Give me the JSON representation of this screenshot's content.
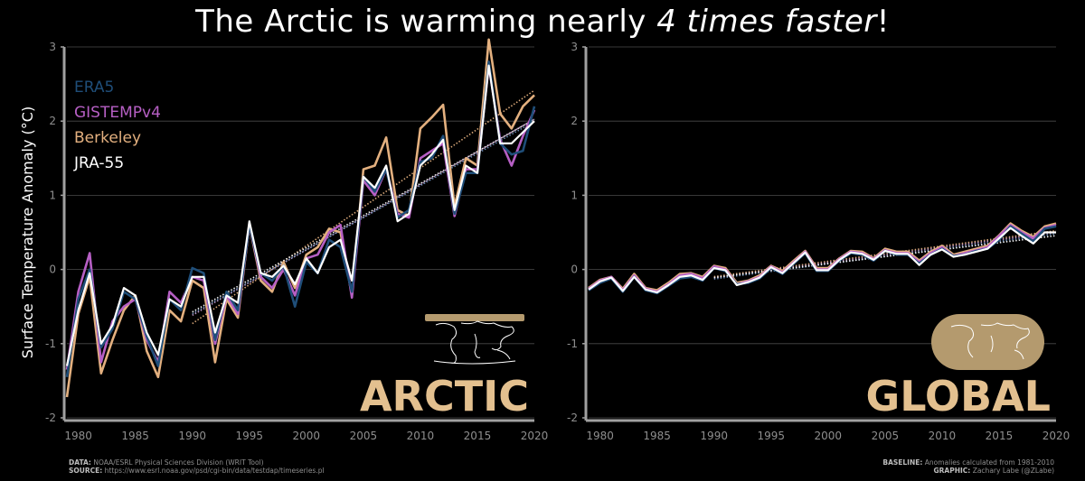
{
  "title": {
    "prefix": "The Arctic is warming nearly ",
    "emphasis": "4 times faster",
    "suffix": "!"
  },
  "colors": {
    "ERA5": "#1f4e79",
    "GISTEMPv4": "#b65fc4",
    "Berkeley": "#e3b07f",
    "JRA-55": "#ffffff",
    "panel_label": "#e3c08f",
    "map": "#b49a6e"
  },
  "chart_data": [
    {
      "type": "line",
      "title": "",
      "panel_label": "ARCTIC",
      "ylabel": "Surface Temperature Anomaly (°C)",
      "xlabel": "",
      "xlim": [
        1979,
        2020
      ],
      "ylim": [
        -2,
        3
      ],
      "xticks": [
        1980,
        1985,
        1990,
        1995,
        2000,
        2005,
        2010,
        2015,
        2020
      ],
      "yticks": [
        -2,
        -1,
        0,
        1,
        2,
        3
      ],
      "grid": true,
      "legend": "top-left",
      "x": [
        1979,
        1980,
        1981,
        1982,
        1983,
        1984,
        1985,
        1986,
        1987,
        1988,
        1989,
        1990,
        1991,
        1992,
        1993,
        1994,
        1995,
        1996,
        1997,
        1998,
        1999,
        2000,
        2001,
        2002,
        2003,
        2004,
        2005,
        2006,
        2007,
        2008,
        2009,
        2010,
        2011,
        2012,
        2013,
        2014,
        2015,
        2016,
        2017,
        2018,
        2019,
        2020
      ],
      "series": [
        {
          "name": "ERA5",
          "values": [
            -1.45,
            -0.4,
            0.0,
            -1.05,
            -0.8,
            -0.3,
            -0.4,
            -0.9,
            -1.3,
            -0.4,
            -0.55,
            0.02,
            -0.05,
            -0.95,
            -0.3,
            -0.55,
            0.6,
            -0.05,
            -0.15,
            0.05,
            -0.5,
            0.1,
            -0.05,
            0.4,
            0.3,
            -0.3,
            1.25,
            1.05,
            1.35,
            0.7,
            0.8,
            1.45,
            1.5,
            1.8,
            0.75,
            1.3,
            1.3,
            2.8,
            1.7,
            1.55,
            1.6,
            2.2
          ]
        },
        {
          "name": "GISTEMPv4",
          "values": [
            -1.35,
            -0.3,
            0.22,
            -1.25,
            -0.7,
            -0.5,
            -0.4,
            -0.95,
            -1.25,
            -0.3,
            -0.45,
            -0.1,
            -0.15,
            -1.0,
            -0.35,
            -0.6,
            0.6,
            -0.1,
            -0.25,
            0.0,
            -0.35,
            0.15,
            0.2,
            0.5,
            0.6,
            -0.38,
            1.2,
            1.0,
            1.35,
            0.75,
            0.7,
            1.5,
            1.6,
            1.7,
            0.72,
            1.35,
            1.35,
            2.75,
            1.75,
            1.4,
            1.8,
            2.15
          ]
        },
        {
          "name": "Berkeley",
          "values": [
            -1.72,
            -0.6,
            -0.1,
            -1.4,
            -0.95,
            -0.55,
            -0.35,
            -1.1,
            -1.45,
            -0.55,
            -0.7,
            -0.15,
            -0.25,
            -1.25,
            -0.4,
            -0.65,
            0.6,
            -0.15,
            -0.3,
            0.1,
            -0.25,
            0.2,
            0.3,
            0.55,
            0.5,
            -0.35,
            1.35,
            1.4,
            1.78,
            0.8,
            0.72,
            1.9,
            2.05,
            2.22,
            0.85,
            1.5,
            1.4,
            3.1,
            2.1,
            1.9,
            2.2,
            2.35
          ]
        },
        {
          "name": "JRA-55",
          "values": [
            -1.3,
            -0.55,
            -0.05,
            -1.0,
            -0.75,
            -0.25,
            -0.35,
            -0.85,
            -1.15,
            -0.4,
            -0.5,
            -0.1,
            -0.1,
            -0.85,
            -0.35,
            -0.45,
            0.65,
            -0.05,
            -0.1,
            0.05,
            -0.2,
            0.15,
            -0.05,
            0.3,
            0.4,
            -0.15,
            1.25,
            1.1,
            1.4,
            0.65,
            0.75,
            1.4,
            1.55,
            1.75,
            0.8,
            1.4,
            1.3,
            2.75,
            1.7,
            1.7,
            1.85,
            2.0
          ]
        }
      ]
    },
    {
      "type": "line",
      "title": "",
      "panel_label": "GLOBAL",
      "ylabel": "",
      "xlabel": "",
      "xlim": [
        1979,
        2020
      ],
      "ylim": [
        -2,
        3
      ],
      "xticks": [
        1980,
        1985,
        1990,
        1995,
        2000,
        2005,
        2010,
        2015,
        2020
      ],
      "yticks": [
        -2,
        -1,
        0,
        1,
        2,
        3
      ],
      "grid": true,
      "legend": "none",
      "x": [
        1979,
        1980,
        1981,
        1982,
        1983,
        1984,
        1985,
        1986,
        1987,
        1988,
        1989,
        1990,
        1991,
        1992,
        1993,
        1994,
        1995,
        1996,
        1997,
        1998,
        1999,
        2000,
        2001,
        2002,
        2003,
        2004,
        2005,
        2006,
        2007,
        2008,
        2009,
        2010,
        2011,
        2012,
        2013,
        2014,
        2015,
        2016,
        2017,
        2018,
        2019,
        2020
      ],
      "series": [
        {
          "name": "ERA5",
          "values": [
            -0.28,
            -0.18,
            -0.12,
            -0.3,
            -0.1,
            -0.28,
            -0.32,
            -0.22,
            -0.12,
            -0.1,
            -0.15,
            0.02,
            -0.02,
            -0.2,
            -0.18,
            -0.12,
            0.02,
            -0.06,
            0.08,
            0.22,
            -0.02,
            -0.02,
            0.12,
            0.22,
            0.2,
            0.12,
            0.25,
            0.2,
            0.2,
            0.08,
            0.2,
            0.28,
            0.18,
            0.2,
            0.25,
            0.28,
            0.4,
            0.58,
            0.48,
            0.38,
            0.55,
            0.58
          ]
        },
        {
          "name": "GISTEMPv4",
          "values": [
            -0.26,
            -0.15,
            -0.1,
            -0.28,
            -0.08,
            -0.26,
            -0.3,
            -0.2,
            -0.08,
            -0.06,
            -0.12,
            0.04,
            0.0,
            -0.2,
            -0.16,
            -0.1,
            0.04,
            -0.04,
            0.1,
            0.24,
            0.0,
            0.0,
            0.14,
            0.24,
            0.22,
            0.14,
            0.26,
            0.22,
            0.22,
            0.1,
            0.22,
            0.3,
            0.18,
            0.22,
            0.26,
            0.3,
            0.45,
            0.6,
            0.5,
            0.42,
            0.56,
            0.6
          ]
        },
        {
          "name": "Berkeley",
          "values": [
            -0.25,
            -0.14,
            -0.1,
            -0.26,
            -0.06,
            -0.25,
            -0.28,
            -0.18,
            -0.06,
            -0.05,
            -0.1,
            0.05,
            0.02,
            -0.18,
            -0.15,
            -0.08,
            0.05,
            -0.02,
            0.12,
            0.25,
            0.02,
            0.02,
            0.15,
            0.25,
            0.24,
            0.15,
            0.28,
            0.24,
            0.24,
            0.12,
            0.24,
            0.32,
            0.2,
            0.24,
            0.28,
            0.32,
            0.46,
            0.62,
            0.52,
            0.44,
            0.58,
            0.62
          ]
        },
        {
          "name": "JRA-55",
          "values": [
            -0.27,
            -0.16,
            -0.11,
            -0.29,
            -0.1,
            -0.27,
            -0.31,
            -0.21,
            -0.1,
            -0.08,
            -0.14,
            0.02,
            -0.01,
            -0.21,
            -0.17,
            -0.11,
            0.03,
            -0.05,
            0.09,
            0.23,
            -0.01,
            -0.01,
            0.13,
            0.23,
            0.21,
            0.13,
            0.25,
            0.21,
            0.21,
            0.06,
            0.2,
            0.27,
            0.17,
            0.2,
            0.24,
            0.28,
            0.42,
            0.56,
            0.45,
            0.35,
            0.5,
            0.5
          ]
        }
      ]
    }
  ],
  "footer": {
    "data_label": "DATA:",
    "data_text": "NOAA/ESRL Physical Sciences Division (WRIT Tool)",
    "source_label": "SOURCE:",
    "source_text": "https://www.esrl.noaa.gov/psd/cgi-bin/data/testdap/timeseries.pl",
    "baseline_label": "BASELINE:",
    "baseline_text": "Anomalies calculated from 1981-2010",
    "graphic_label": "GRAPHIC:",
    "graphic_text": "Zachary Labe (@ZLabe)"
  }
}
